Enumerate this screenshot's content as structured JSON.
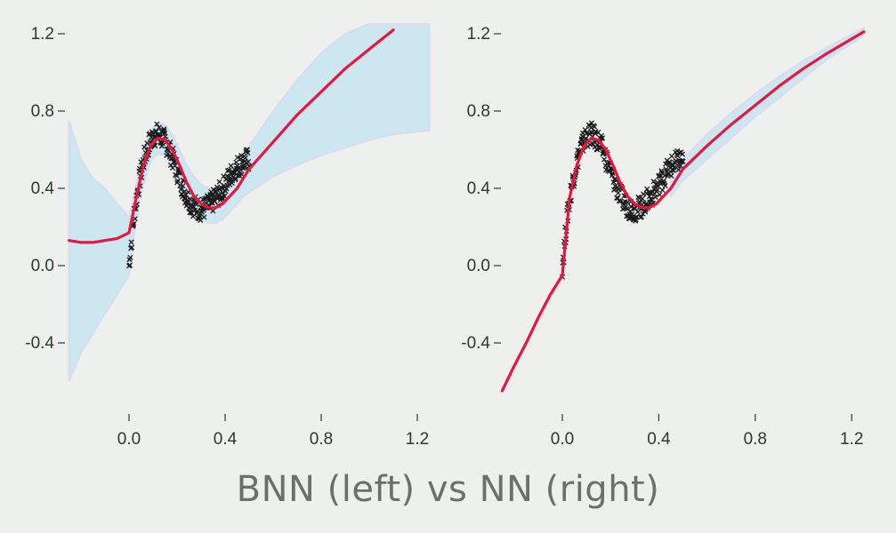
{
  "caption": "BNN (left) vs NN (right)",
  "colors": {
    "background": "#eef0ee",
    "band": "#c9e7f1",
    "band_edge": "#d7d9f0",
    "mean_line": "#e8163f",
    "observations": "#1a1a1a",
    "text": "#333333"
  },
  "chart_data": [
    {
      "type": "line",
      "title": "",
      "xlabel": "",
      "ylabel": "",
      "xlim": [
        -0.25,
        1.25
      ],
      "ylim": [
        -0.6,
        1.25
      ],
      "xticks": [
        "0.0",
        "0.4",
        "0.8",
        "1.2"
      ],
      "yticks": [
        "1.2",
        "0.8",
        "0.4",
        "0.0",
        "-0.4"
      ],
      "grid": false,
      "series": [
        {
          "role": "mean",
          "x": [
            -0.25,
            -0.2,
            -0.15,
            -0.1,
            -0.05,
            0.0,
            0.03,
            0.06,
            0.09,
            0.12,
            0.15,
            0.18,
            0.21,
            0.24,
            0.27,
            0.3,
            0.33,
            0.36,
            0.39,
            0.42,
            0.45,
            0.48,
            0.5,
            0.6,
            0.7,
            0.8,
            0.9,
            1.0,
            1.1
          ],
          "y": [
            0.13,
            0.12,
            0.12,
            0.13,
            0.14,
            0.17,
            0.35,
            0.52,
            0.62,
            0.66,
            0.65,
            0.6,
            0.52,
            0.43,
            0.36,
            0.32,
            0.3,
            0.3,
            0.32,
            0.36,
            0.4,
            0.46,
            0.5,
            0.64,
            0.78,
            0.9,
            1.02,
            1.12,
            1.22
          ]
        },
        {
          "role": "uncertainty_band",
          "x": [
            -0.25,
            -0.2,
            -0.15,
            -0.1,
            -0.05,
            0.0,
            0.03,
            0.06,
            0.09,
            0.12,
            0.15,
            0.18,
            0.21,
            0.24,
            0.27,
            0.3,
            0.33,
            0.36,
            0.39,
            0.42,
            0.45,
            0.48,
            0.5,
            0.6,
            0.7,
            0.8,
            0.9,
            1.0,
            1.1,
            1.25
          ],
          "upper": [
            0.75,
            0.55,
            0.45,
            0.4,
            0.32,
            0.25,
            0.42,
            0.6,
            0.7,
            0.74,
            0.73,
            0.68,
            0.6,
            0.52,
            0.46,
            0.42,
            0.4,
            0.4,
            0.42,
            0.46,
            0.5,
            0.56,
            0.62,
            0.8,
            0.96,
            1.1,
            1.2,
            1.25,
            1.25,
            1.25
          ],
          "lower": [
            -0.6,
            -0.45,
            -0.35,
            -0.25,
            -0.15,
            -0.05,
            0.25,
            0.42,
            0.54,
            0.58,
            0.57,
            0.52,
            0.44,
            0.35,
            0.28,
            0.24,
            0.22,
            0.22,
            0.24,
            0.28,
            0.32,
            0.36,
            0.38,
            0.46,
            0.52,
            0.57,
            0.61,
            0.65,
            0.68,
            0.7
          ]
        }
      ],
      "observations": {
        "x_range": [
          0.0,
          0.5
        ],
        "x": [
          0.0,
          0.02,
          0.04,
          0.06,
          0.08,
          0.1,
          0.12,
          0.14,
          0.16,
          0.18,
          0.2,
          0.22,
          0.24,
          0.26,
          0.28,
          0.3,
          0.32,
          0.34,
          0.36,
          0.38,
          0.4,
          0.42,
          0.44,
          0.46,
          0.48,
          0.5
        ],
        "y": [
          0.0,
          0.25,
          0.42,
          0.54,
          0.62,
          0.67,
          0.68,
          0.66,
          0.62,
          0.56,
          0.49,
          0.42,
          0.36,
          0.32,
          0.3,
          0.29,
          0.3,
          0.32,
          0.35,
          0.38,
          0.42,
          0.46,
          0.5,
          0.52,
          0.54,
          0.55
        ]
      }
    },
    {
      "type": "line",
      "title": "",
      "xlabel": "",
      "ylabel": "",
      "xlim": [
        -0.25,
        1.25
      ],
      "ylim": [
        -0.6,
        1.25
      ],
      "xticks": [
        "0.0",
        "0.4",
        "0.8",
        "1.2"
      ],
      "yticks": [
        "1.2",
        "0.8",
        "0.4",
        "0.0",
        "-0.4"
      ],
      "grid": false,
      "series": [
        {
          "role": "mean",
          "x": [
            -0.25,
            -0.2,
            -0.15,
            -0.1,
            -0.05,
            0.0,
            0.03,
            0.06,
            0.09,
            0.12,
            0.15,
            0.18,
            0.21,
            0.24,
            0.27,
            0.3,
            0.33,
            0.36,
            0.39,
            0.42,
            0.45,
            0.48,
            0.5,
            0.6,
            0.7,
            0.8,
            0.9,
            1.0,
            1.1,
            1.25
          ],
          "y": [
            -0.66,
            -0.52,
            -0.4,
            -0.27,
            -0.15,
            -0.05,
            0.35,
            0.52,
            0.62,
            0.66,
            0.65,
            0.6,
            0.52,
            0.43,
            0.36,
            0.32,
            0.3,
            0.3,
            0.32,
            0.36,
            0.4,
            0.46,
            0.5,
            0.62,
            0.73,
            0.83,
            0.93,
            1.02,
            1.1,
            1.21
          ]
        },
        {
          "role": "uncertainty_band",
          "x": [
            0.45,
            0.5,
            0.6,
            0.7,
            0.8,
            0.9,
            1.0,
            1.1,
            1.25
          ],
          "upper": [
            0.46,
            0.55,
            0.68,
            0.79,
            0.89,
            0.98,
            1.06,
            1.13,
            1.23
          ],
          "lower": [
            0.36,
            0.44,
            0.55,
            0.66,
            0.77,
            0.87,
            0.97,
            1.07,
            1.19
          ]
        }
      ],
      "observations": {
        "x_range": [
          0.0,
          0.5
        ],
        "x": [
          0.0,
          0.02,
          0.04,
          0.06,
          0.08,
          0.1,
          0.12,
          0.14,
          0.16,
          0.18,
          0.2,
          0.22,
          0.24,
          0.26,
          0.28,
          0.3,
          0.32,
          0.34,
          0.36,
          0.38,
          0.4,
          0.42,
          0.44,
          0.46,
          0.48,
          0.5
        ],
        "y": [
          0.0,
          0.25,
          0.42,
          0.54,
          0.62,
          0.67,
          0.68,
          0.66,
          0.62,
          0.56,
          0.49,
          0.42,
          0.36,
          0.32,
          0.3,
          0.29,
          0.3,
          0.32,
          0.35,
          0.38,
          0.42,
          0.46,
          0.5,
          0.52,
          0.54,
          0.55
        ]
      }
    }
  ]
}
